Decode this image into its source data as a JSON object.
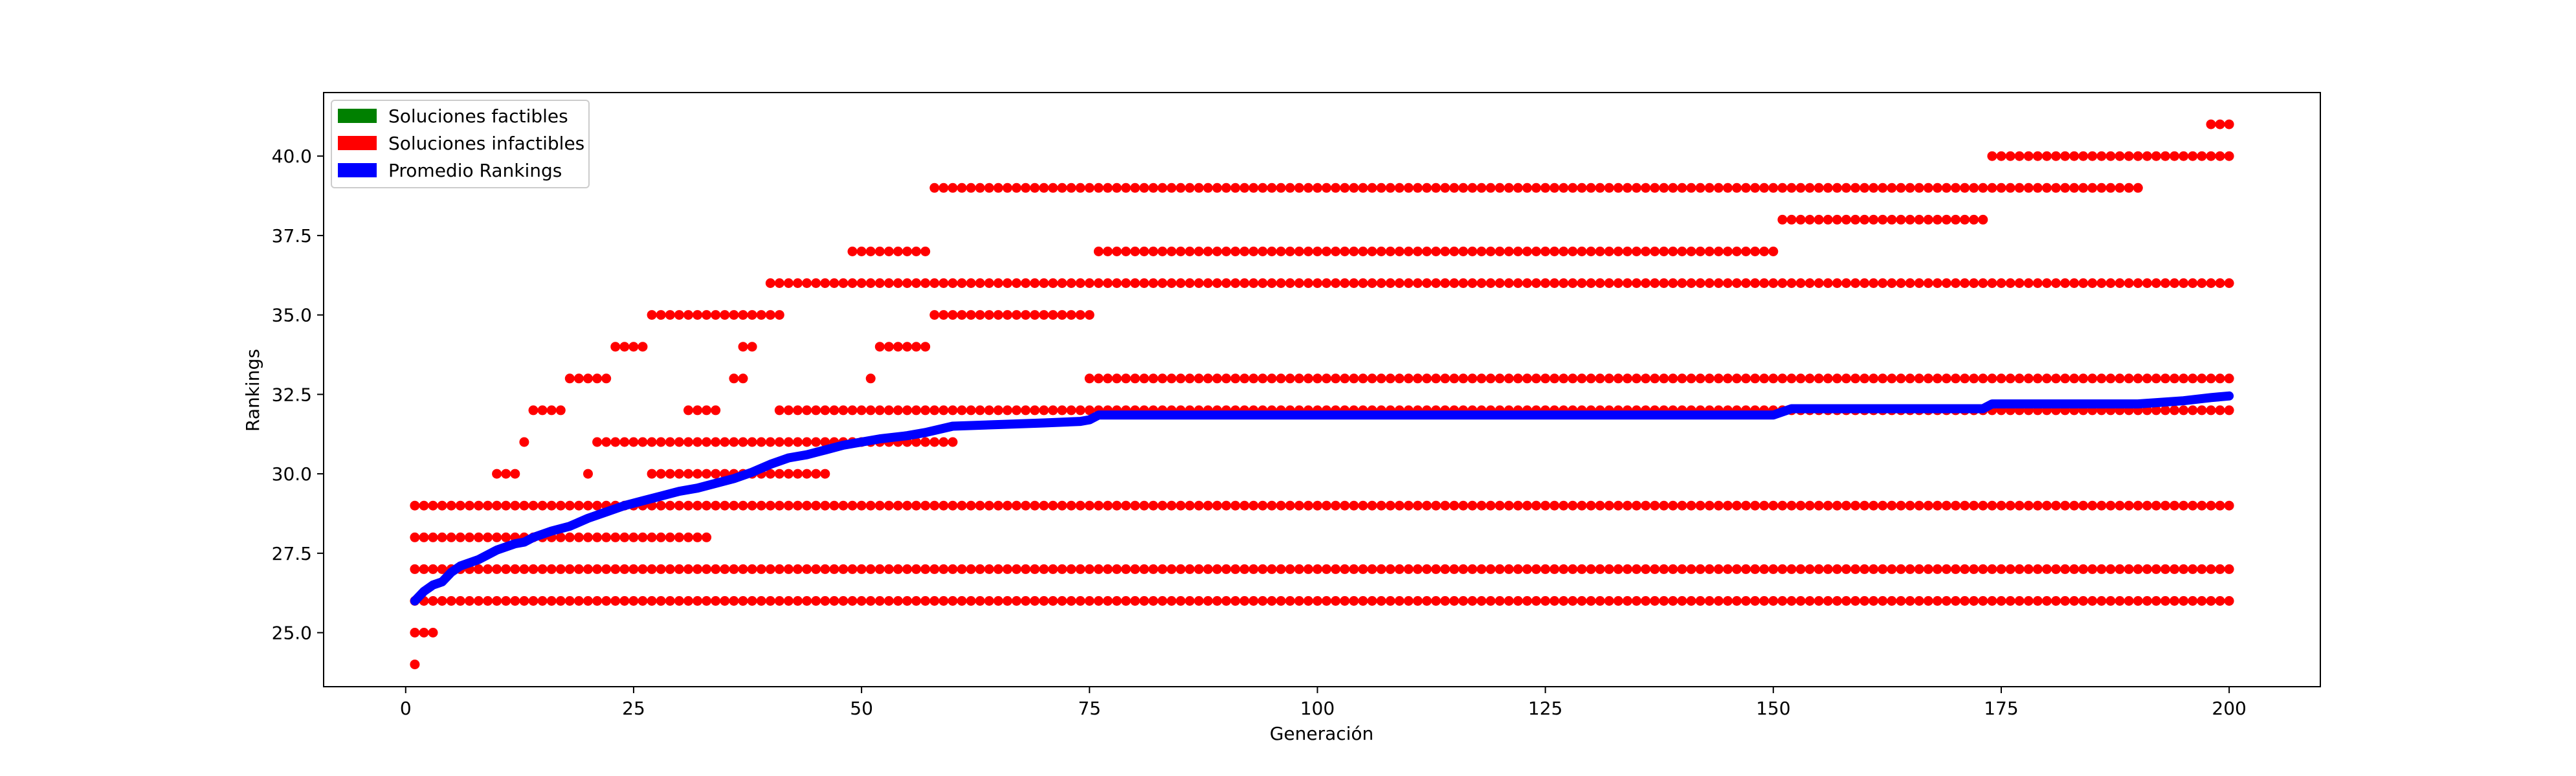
{
  "chart_data": {
    "type": "scatter",
    "xlabel": "Generación",
    "ylabel": "Rankings",
    "xlim": [
      -9,
      210
    ],
    "ylim": [
      23.3,
      42.0
    ],
    "x_ticks": [
      0,
      25,
      50,
      75,
      100,
      125,
      150,
      175,
      200
    ],
    "x_tick_labels": [
      "0",
      "25",
      "50",
      "75",
      "100",
      "125",
      "150",
      "175",
      "200"
    ],
    "y_ticks": [
      25.0,
      27.5,
      30.0,
      32.5,
      35.0,
      37.5,
      40.0
    ],
    "y_tick_labels": [
      "25.0",
      "27.5",
      "30.0",
      "32.5",
      "35.0",
      "37.5",
      "40.0"
    ],
    "grid": false,
    "legend": {
      "placement": "top-left",
      "entries": [
        {
          "label": "Soluciones factibles",
          "color": "#008000"
        },
        {
          "label": "Soluciones infactibles",
          "color": "#ff0000"
        },
        {
          "label": "Promedio Rankings",
          "color": "#0000ff"
        }
      ]
    },
    "scatter_series": {
      "name": "Soluciones infactibles",
      "color": "#ff0000",
      "levels": [
        {
          "y": 24,
          "ranges": [
            [
              1,
              1
            ]
          ]
        },
        {
          "y": 25,
          "ranges": [
            [
              1,
              3
            ]
          ]
        },
        {
          "y": 26,
          "ranges": [
            [
              1,
              200
            ]
          ]
        },
        {
          "y": 27,
          "ranges": [
            [
              1,
              200
            ]
          ]
        },
        {
          "y": 28,
          "ranges": [
            [
              1,
              33
            ]
          ]
        },
        {
          "y": 29,
          "ranges": [
            [
              1,
              200
            ]
          ]
        },
        {
          "y": 30,
          "ranges": [
            [
              10,
              12
            ],
            [
              20,
              20
            ],
            [
              27,
              46
            ]
          ]
        },
        {
          "y": 31,
          "ranges": [
            [
              13,
              13
            ],
            [
              21,
              60
            ]
          ]
        },
        {
          "y": 32,
          "ranges": [
            [
              14,
              17
            ],
            [
              31,
              34
            ],
            [
              41,
              200
            ]
          ]
        },
        {
          "y": 33,
          "ranges": [
            [
              18,
              22
            ],
            [
              36,
              37
            ],
            [
              51,
              51
            ],
            [
              75,
              200
            ]
          ]
        },
        {
          "y": 34,
          "ranges": [
            [
              23,
              26
            ],
            [
              37,
              38
            ],
            [
              52,
              57
            ]
          ]
        },
        {
          "y": 35,
          "ranges": [
            [
              27,
              41
            ],
            [
              58,
              75
            ]
          ]
        },
        {
          "y": 36,
          "ranges": [
            [
              40,
              200
            ]
          ]
        },
        {
          "y": 37,
          "ranges": [
            [
              49,
              57
            ],
            [
              76,
              150
            ]
          ]
        },
        {
          "y": 38,
          "ranges": [
            [
              151,
              173
            ]
          ]
        },
        {
          "y": 39,
          "ranges": [
            [
              58,
              190
            ]
          ]
        },
        {
          "y": 40,
          "ranges": [
            [
              174,
              200
            ]
          ]
        },
        {
          "y": 41,
          "ranges": [
            [
              198,
              200
            ]
          ]
        }
      ]
    },
    "line_series": {
      "name": "Promedio Rankings",
      "color": "#0000ff",
      "x": [
        1,
        2,
        3,
        4,
        5,
        6,
        8,
        10,
        12,
        13,
        14,
        16,
        18,
        20,
        22,
        24,
        26,
        28,
        30,
        32,
        34,
        36,
        38,
        40,
        42,
        44,
        46,
        48,
        50,
        52,
        55,
        57,
        60,
        65,
        70,
        74,
        75,
        76,
        80,
        100,
        120,
        140,
        150,
        151,
        152,
        160,
        173,
        174,
        180,
        190,
        195,
        198,
        200
      ],
      "y": [
        26.0,
        26.3,
        26.5,
        26.6,
        26.9,
        27.1,
        27.3,
        27.6,
        27.8,
        27.85,
        28.0,
        28.2,
        28.35,
        28.6,
        28.8,
        29.0,
        29.15,
        29.3,
        29.45,
        29.55,
        29.7,
        29.85,
        30.05,
        30.3,
        30.5,
        30.6,
        30.75,
        30.9,
        31.0,
        31.1,
        31.2,
        31.3,
        31.5,
        31.55,
        31.6,
        31.65,
        31.7,
        31.85,
        31.85,
        31.85,
        31.85,
        31.85,
        31.85,
        31.95,
        32.05,
        32.05,
        32.05,
        32.2,
        32.2,
        32.2,
        32.3,
        32.4,
        32.45
      ]
    }
  }
}
